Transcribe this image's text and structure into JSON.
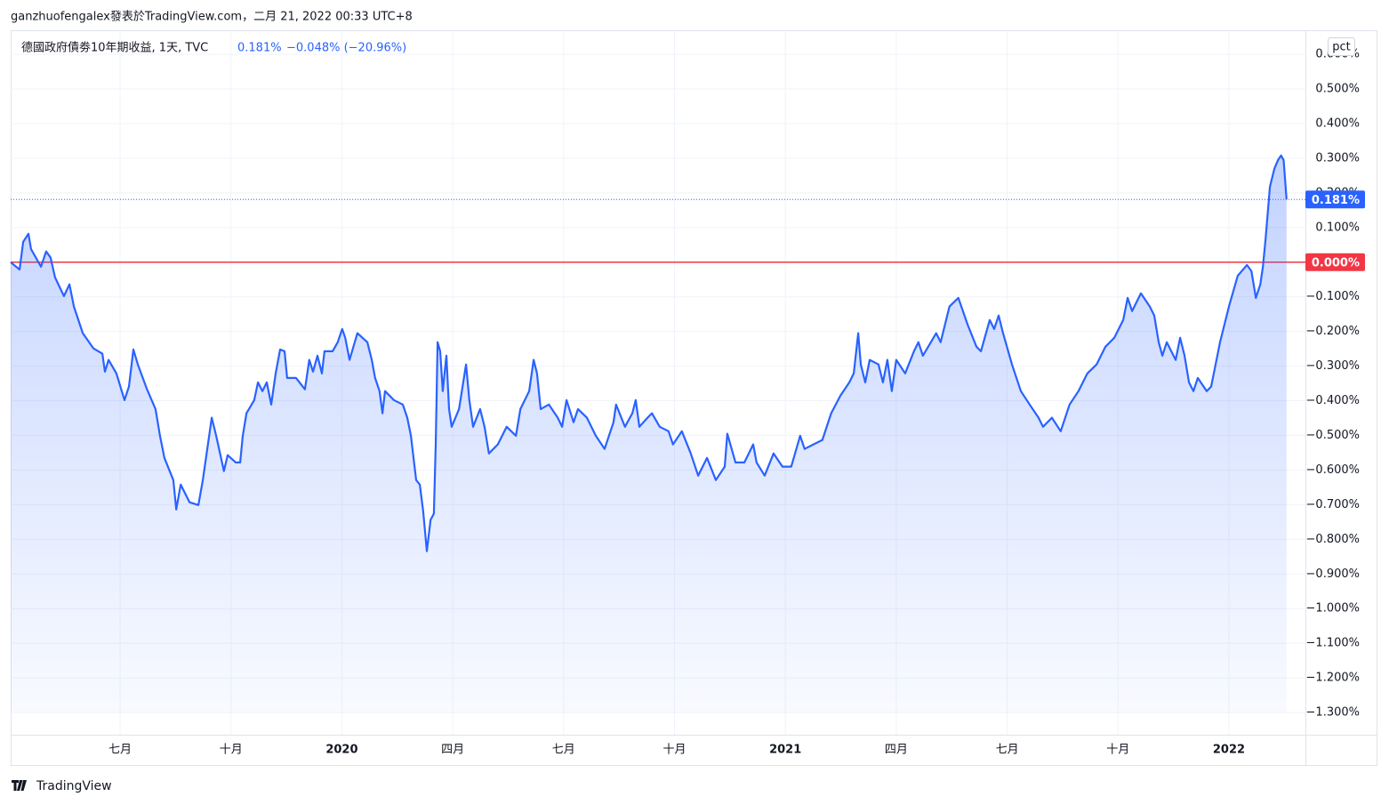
{
  "header": {
    "attribution": "ganzhuofengalex發表於TradingView.com，二月 21, 2022 00:33 UTC+8"
  },
  "footer": {
    "brand": "TradingView"
  },
  "controls": {
    "scale_button": "pct"
  },
  "chart_data": {
    "type": "area",
    "title": "德國政府債劵10年期收益, 1天, TVC",
    "legend_values": [
      "0.181%",
      "−0.048% (−20.96%)"
    ],
    "last_value_label": "0.181%",
    "reference_line": {
      "value": 0,
      "label": "0.000%",
      "color": "#f23645"
    },
    "grid": true,
    "xlim": [
      3.04,
      38.07
    ],
    "xticks": [
      {
        "value": 6,
        "label": "七月"
      },
      {
        "value": 9,
        "label": "十月"
      },
      {
        "value": 12,
        "label": "2020"
      },
      {
        "value": 15,
        "label": "四月"
      },
      {
        "value": 18,
        "label": "七月"
      },
      {
        "value": 21,
        "label": "十月"
      },
      {
        "value": 24,
        "label": "2021"
      },
      {
        "value": 27,
        "label": "四月"
      },
      {
        "value": 30,
        "label": "七月"
      },
      {
        "value": 33,
        "label": "十月"
      },
      {
        "value": 36,
        "label": "2022"
      }
    ],
    "ylim": [
      -1.364,
      0.667
    ],
    "yticks": [
      {
        "value": 0.6,
        "label": "0.600%"
      },
      {
        "value": 0.5,
        "label": "0.500%"
      },
      {
        "value": 0.4,
        "label": "0.400%"
      },
      {
        "value": 0.3,
        "label": "0.300%"
      },
      {
        "value": 0.2,
        "label": "0.200%"
      },
      {
        "value": 0.1,
        "label": "0.100%"
      },
      {
        "value": -0.1,
        "label": "−0.100%"
      },
      {
        "value": -0.2,
        "label": "−0.200%"
      },
      {
        "value": -0.3,
        "label": "−0.300%"
      },
      {
        "value": -0.4,
        "label": "−0.400%"
      },
      {
        "value": -0.5,
        "label": "−0.500%"
      },
      {
        "value": -0.6,
        "label": "−0.600%"
      },
      {
        "value": -0.7,
        "label": "−0.700%"
      },
      {
        "value": -0.8,
        "label": "−0.800%"
      },
      {
        "value": -0.9,
        "label": "−0.900%"
      },
      {
        "value": -1.0,
        "label": "−1.000%"
      },
      {
        "value": -1.1,
        "label": "−1.100%"
      },
      {
        "value": -1.2,
        "label": "−1.200%"
      },
      {
        "value": -1.3,
        "label": "−1.300%"
      }
    ],
    "x": [
      3.04,
      3.28,
      3.38,
      3.52,
      3.59,
      3.86,
      4.0,
      4.12,
      4.24,
      4.48,
      4.63,
      4.75,
      4.99,
      5.28,
      5.52,
      5.59,
      5.69,
      5.9,
      6.12,
      6.24,
      6.36,
      6.48,
      6.72,
      6.96,
      7.08,
      7.2,
      7.44,
      7.52,
      7.64,
      7.88,
      8.12,
      8.24,
      8.36,
      8.48,
      8.6,
      8.81,
      8.91,
      9.13,
      9.25,
      9.32,
      9.42,
      9.63,
      9.73,
      9.85,
      9.97,
      10.09,
      10.21,
      10.33,
      10.45,
      10.52,
      10.76,
      11.0,
      11.12,
      11.22,
      11.34,
      11.46,
      11.53,
      11.75,
      11.89,
      12.01,
      12.09,
      12.21,
      12.42,
      12.69,
      12.81,
      12.9,
      13.02,
      13.1,
      13.17,
      13.41,
      13.65,
      13.77,
      13.87,
      14.01,
      14.11,
      14.2,
      14.3,
      14.4,
      14.49,
      14.54,
      14.59,
      14.66,
      14.73,
      14.83,
      14.9,
      14.97,
      15.17,
      15.36,
      15.45,
      15.55,
      15.74,
      15.86,
      15.98,
      16.22,
      16.46,
      16.71,
      16.83,
      17.07,
      17.19,
      17.28,
      17.38,
      17.6,
      17.84,
      17.96,
      18.08,
      18.27,
      18.39,
      18.63,
      18.87,
      19.11,
      19.35,
      19.42,
      19.66,
      19.86,
      19.95,
      20.05,
      20.27,
      20.39,
      20.6,
      20.84,
      20.96,
      21.2,
      21.44,
      21.64,
      21.88,
      22.12,
      22.36,
      22.43,
      22.65,
      22.89,
      23.13,
      23.22,
      23.44,
      23.68,
      23.92,
      24.16,
      24.4,
      24.52,
      24.76,
      25.0,
      25.24,
      25.49,
      25.73,
      25.85,
      25.97,
      26.04,
      26.16,
      26.28,
      26.52,
      26.64,
      26.76,
      26.88,
      27.0,
      27.24,
      27.48,
      27.6,
      27.72,
      28.08,
      28.2,
      28.44,
      28.68,
      28.93,
      29.17,
      29.29,
      29.53,
      29.65,
      29.77,
      29.89,
      30.13,
      30.37,
      30.61,
      30.85,
      30.97,
      31.21,
      31.45,
      31.69,
      31.93,
      32.17,
      32.42,
      32.66,
      32.9,
      33.14,
      33.26,
      33.38,
      33.62,
      33.86,
      33.98,
      34.1,
      34.2,
      34.32,
      34.56,
      34.68,
      34.8,
      34.92,
      35.04,
      35.16,
      35.4,
      35.52,
      35.64,
      35.76,
      36.0,
      36.24,
      36.49,
      36.61,
      36.73,
      36.85,
      36.92,
      36.99,
      37.11,
      37.23,
      37.33,
      37.41,
      37.48,
      37.56
    ],
    "series": [
      {
        "name": "德國政府債劵10年期收益",
        "color": "#2962ff",
        "values": [
          0,
          -0.021,
          0.059,
          0.082,
          0.038,
          -0.013,
          0.031,
          0.013,
          -0.044,
          -0.098,
          -0.064,
          -0.128,
          -0.205,
          -0.249,
          -0.264,
          -0.316,
          -0.282,
          -0.321,
          -0.398,
          -0.359,
          -0.252,
          -0.295,
          -0.365,
          -0.424,
          -0.501,
          -0.565,
          -0.629,
          -0.714,
          -0.642,
          -0.693,
          -0.701,
          -0.629,
          -0.539,
          -0.449,
          -0.501,
          -0.603,
          -0.557,
          -0.578,
          -0.578,
          -0.501,
          -0.436,
          -0.398,
          -0.347,
          -0.372,
          -0.347,
          -0.411,
          -0.321,
          -0.252,
          -0.257,
          -0.334,
          -0.334,
          -0.367,
          -0.282,
          -0.316,
          -0.27,
          -0.321,
          -0.257,
          -0.257,
          -0.231,
          -0.193,
          -0.218,
          -0.282,
          -0.205,
          -0.231,
          -0.282,
          -0.334,
          -0.372,
          -0.436,
          -0.372,
          -0.398,
          -0.411,
          -0.449,
          -0.501,
          -0.629,
          -0.642,
          -0.719,
          -0.834,
          -0.744,
          -0.726,
          -0.526,
          -0.231,
          -0.257,
          -0.372,
          -0.27,
          -0.424,
          -0.475,
          -0.424,
          -0.295,
          -0.398,
          -0.475,
          -0.424,
          -0.475,
          -0.552,
          -0.526,
          -0.475,
          -0.501,
          -0.424,
          -0.372,
          -0.282,
          -0.321,
          -0.424,
          -0.411,
          -0.449,
          -0.475,
          -0.398,
          -0.462,
          -0.424,
          -0.449,
          -0.501,
          -0.539,
          -0.462,
          -0.411,
          -0.475,
          -0.436,
          -0.398,
          -0.475,
          -0.449,
          -0.436,
          -0.475,
          -0.488,
          -0.526,
          -0.488,
          -0.552,
          -0.616,
          -0.565,
          -0.629,
          -0.59,
          -0.495,
          -0.578,
          -0.578,
          -0.526,
          -0.578,
          -0.616,
          -0.552,
          -0.59,
          -0.59,
          -0.501,
          -0.539,
          -0.526,
          -0.513,
          -0.436,
          -0.385,
          -0.347,
          -0.321,
          -0.205,
          -0.295,
          -0.347,
          -0.282,
          -0.295,
          -0.347,
          -0.282,
          -0.372,
          -0.282,
          -0.321,
          -0.257,
          -0.231,
          -0.27,
          -0.205,
          -0.231,
          -0.128,
          -0.103,
          -0.18,
          -0.244,
          -0.257,
          -0.167,
          -0.193,
          -0.154,
          -0.205,
          -0.295,
          -0.372,
          -0.411,
          -0.449,
          -0.475,
          -0.449,
          -0.488,
          -0.411,
          -0.372,
          -0.321,
          -0.295,
          -0.244,
          -0.218,
          -0.167,
          -0.103,
          -0.141,
          -0.09,
          -0.128,
          -0.154,
          -0.231,
          -0.27,
          -0.231,
          -0.282,
          -0.218,
          -0.27,
          -0.347,
          -0.372,
          -0.334,
          -0.372,
          -0.359,
          -0.295,
          -0.231,
          -0.128,
          -0.039,
          -0.008,
          -0.026,
          -0.103,
          -0.064,
          -0.013,
          0.064,
          0.218,
          0.27,
          0.295,
          0.308,
          0.295,
          0.181
        ]
      }
    ]
  }
}
